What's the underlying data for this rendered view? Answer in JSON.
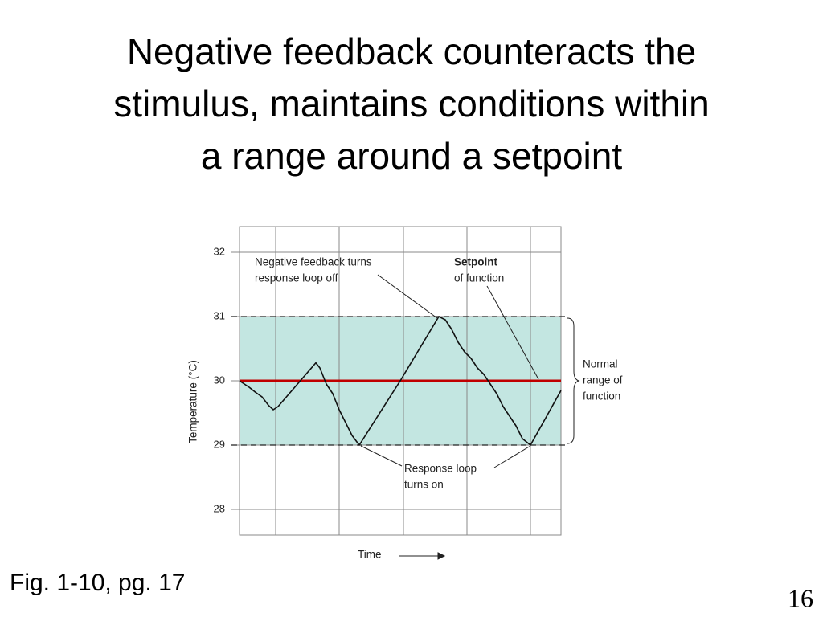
{
  "slide_title": [
    "Negative feedback counteracts the",
    "stimulus, maintains conditions within",
    "a range around a setpoint"
  ],
  "caption": "Fig. 1-10, pg. 17",
  "page_number": "16",
  "chart_data": {
    "type": "line",
    "y_label": "Temperature (°C)",
    "x_label": "Time",
    "ylim": [
      27.6,
      32.4
    ],
    "yticks": [
      28,
      29,
      30,
      31,
      32
    ],
    "xlim": [
      0,
      100
    ],
    "x": [
      0,
      3,
      5,
      7,
      9,
      10.5,
      12,
      23.75,
      25,
      27,
      29,
      31,
      33,
      35,
      37.25,
      50,
      62,
      64,
      66,
      68,
      70,
      72,
      74,
      76,
      78,
      80,
      82,
      84,
      86,
      88,
      90.5,
      95,
      100
    ],
    "values": [
      30,
      29.9,
      29.82,
      29.75,
      29.62,
      29.55,
      29.6,
      30.28,
      30.2,
      29.95,
      29.8,
      29.55,
      29.35,
      29.15,
      29.0,
      30.0,
      31.0,
      30.95,
      30.8,
      30.6,
      30.45,
      30.35,
      30.2,
      30.1,
      29.95,
      29.8,
      29.6,
      29.45,
      29.3,
      29.1,
      29.0,
      29.4,
      29.85
    ],
    "color": "#111111",
    "setpoint": 30,
    "setpoint_color": "#c00000",
    "normal_range": [
      29,
      31
    ],
    "range_color": "#c3e6e1",
    "annotations": {
      "feedback_off": [
        "Negative feedback turns",
        "response loop off"
      ],
      "setpoint_label": [
        "Setpoint",
        "of function"
      ],
      "normal_range_label": [
        "Normal",
        "range of",
        "function"
      ],
      "loop_on": [
        "Response loop",
        "turns on"
      ]
    }
  }
}
